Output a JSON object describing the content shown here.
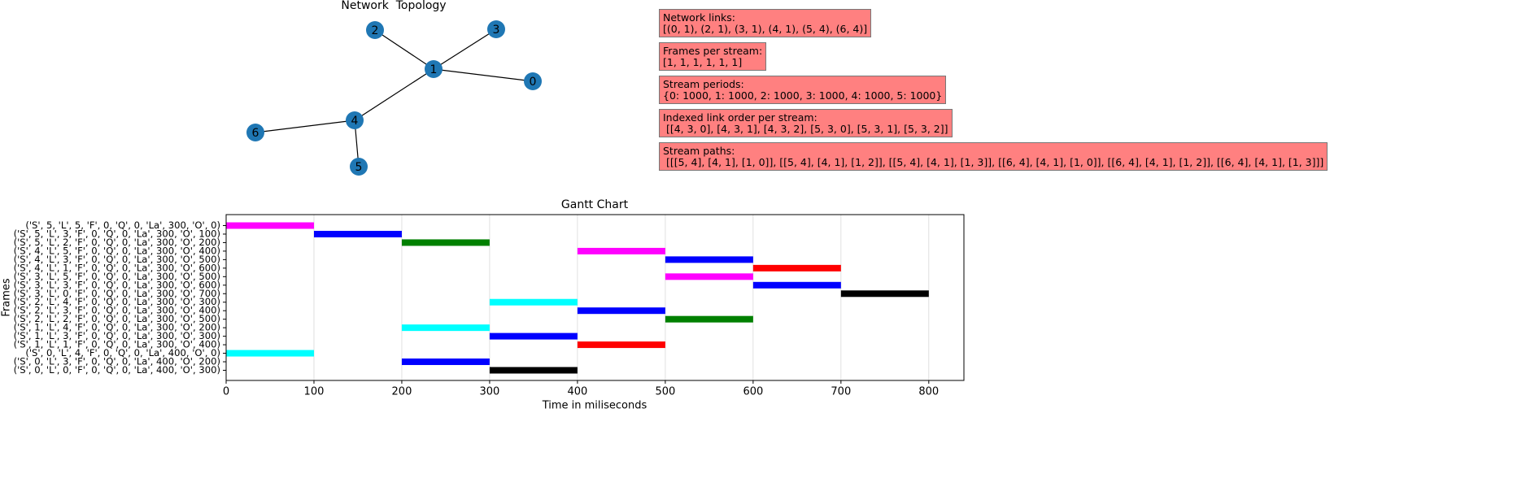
{
  "network": {
    "title": "Network  Topology",
    "nodes": [
      "0",
      "1",
      "2",
      "3",
      "4",
      "5",
      "6"
    ],
    "edges": [
      [
        0,
        1
      ],
      [
        2,
        1
      ],
      [
        3,
        1
      ],
      [
        4,
        1
      ],
      [
        5,
        4
      ],
      [
        6,
        4
      ]
    ]
  },
  "info_boxes": [
    {
      "title": "Network links:",
      "text": "[(0, 1), (2, 1), (3, 1), (4, 1), (5, 4), (6, 4)]"
    },
    {
      "title": "Frames per stream:",
      "text": "[1, 1, 1, 1, 1, 1]"
    },
    {
      "title": "Stream periods:",
      "text": "{0: 1000, 1: 1000, 2: 1000, 3: 1000, 4: 1000, 5: 1000}"
    },
    {
      "title": "Indexed link order per stream:",
      "text": " [[4, 3, 0], [4, 3, 1], [4, 3, 2], [5, 3, 0], [5, 3, 1], [5, 3, 2]]"
    },
    {
      "title": "Stream paths:",
      "text": " [[[5, 4], [4, 1], [1, 0]], [[5, 4], [4, 1], [1, 2]], [[5, 4], [4, 1], [1, 3]], [[6, 4], [4, 1], [1, 0]], [[6, 4], [4, 1], [1, 2]], [[6, 4], [4, 1], [1, 3]]]"
    }
  ],
  "chart_data": {
    "type": "gantt",
    "title": "Gantt Chart",
    "xlabel": "Time in miliseconds",
    "ylabel": "Frames",
    "categories": [
      "('S', 5, 'L', 5, 'F', 0, 'Q', 0, 'La', 300, 'O', 0)",
      "('S', 5, 'L', 3, 'F', 0, 'Q', 0, 'La', 300, 'O', 100)",
      "('S', 5, 'L', 2, 'F', 0, 'Q', 0, 'La', 300, 'O', 200)",
      "('S', 4, 'L', 5, 'F', 0, 'Q', 0, 'La', 300, 'O', 400)",
      "('S', 4, 'L', 3, 'F', 0, 'Q', 0, 'La', 300, 'O', 500)",
      "('S', 4, 'L', 1, 'F', 0, 'Q', 0, 'La', 300, 'O', 600)",
      "('S', 3, 'L', 5, 'F', 0, 'Q', 0, 'La', 300, 'O', 500)",
      "('S', 3, 'L', 3, 'F', 0, 'Q', 0, 'La', 300, 'O', 600)",
      "('S', 3, 'L', 0, 'F', 0, 'Q', 0, 'La', 300, 'O', 700)",
      "('S', 2, 'L', 4, 'F', 0, 'Q', 0, 'La', 300, 'O', 300)",
      "('S', 2, 'L', 3, 'F', 0, 'Q', 0, 'La', 300, 'O', 400)",
      "('S', 2, 'L', 2, 'F', 0, 'Q', 0, 'La', 300, 'O', 500)",
      "('S', 1, 'L', 4, 'F', 0, 'Q', 0, 'La', 300, 'O', 200)",
      "('S', 1, 'L', 3, 'F', 0, 'Q', 0, 'La', 300, 'O', 300)",
      "('S', 1, 'L', 1, 'F', 0, 'Q', 0, 'La', 300, 'O', 400)",
      "('S', 0, 'L', 4, 'F', 0, 'Q', 0, 'La', 400, 'O', 0)",
      "('S', 0, 'L', 3, 'F', 0, 'Q', 0, 'La', 400, 'O', 200)",
      "('S', 0, 'L', 0, 'F', 0, 'Q', 0, 'La', 400, 'O', 300)"
    ],
    "start": [
      0,
      100,
      200,
      400,
      500,
      600,
      500,
      600,
      700,
      300,
      400,
      500,
      200,
      300,
      400,
      0,
      200,
      300
    ],
    "end": [
      100,
      200,
      300,
      500,
      600,
      700,
      600,
      700,
      800,
      400,
      500,
      600,
      300,
      400,
      500,
      100,
      300,
      400
    ],
    "colors": [
      "#ff00ff",
      "#0000ff",
      "#008000",
      "#ff00ff",
      "#0000ff",
      "#ff0000",
      "#ff00ff",
      "#0000ff",
      "#000000",
      "#00ffff",
      "#0000ff",
      "#008000",
      "#00ffff",
      "#0000ff",
      "#ff0000",
      "#00ffff",
      "#0000ff",
      "#000000"
    ],
    "xlim": [
      0,
      840
    ],
    "xticks": [
      0,
      100,
      200,
      300,
      400,
      500,
      600,
      700,
      800
    ],
    "grid": true
  }
}
